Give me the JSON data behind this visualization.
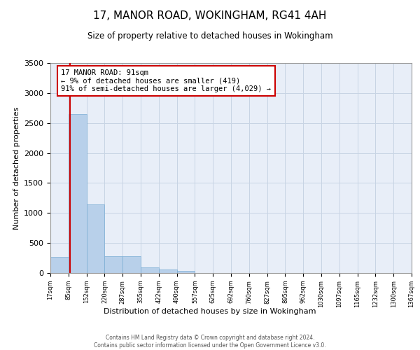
{
  "title": "17, MANOR ROAD, WOKINGHAM, RG41 4AH",
  "subtitle": "Size of property relative to detached houses in Wokingham",
  "xlabel": "Distribution of detached houses by size in Wokingham",
  "ylabel": "Number of detached properties",
  "bar_values": [
    270,
    2650,
    1140,
    285,
    285,
    95,
    55,
    35,
    5,
    5,
    2,
    2,
    1,
    1,
    1,
    1,
    1,
    1,
    1,
    1
  ],
  "bin_labels": [
    "17sqm",
    "85sqm",
    "152sqm",
    "220sqm",
    "287sqm",
    "355sqm",
    "422sqm",
    "490sqm",
    "557sqm",
    "625sqm",
    "692sqm",
    "760sqm",
    "827sqm",
    "895sqm",
    "962sqm",
    "1030sqm",
    "1097sqm",
    "1165sqm",
    "1232sqm",
    "1300sqm",
    "1367sqm"
  ],
  "bar_color": "#b8d0ea",
  "bar_edge_color": "#7aadd4",
  "grid_color": "#c8d4e4",
  "background_color": "#e8eef8",
  "vline_color": "#cc0000",
  "annotation_text": "17 MANOR ROAD: 91sqm\n← 9% of detached houses are smaller (419)\n91% of semi-detached houses are larger (4,029) →",
  "annotation_box_color": "#cc0000",
  "ylim": [
    0,
    3500
  ],
  "yticks": [
    0,
    500,
    1000,
    1500,
    2000,
    2500,
    3000,
    3500
  ],
  "footer_line1": "Contains HM Land Registry data © Crown copyright and database right 2024.",
  "footer_line2": "Contains public sector information licensed under the Open Government Licence v3.0."
}
